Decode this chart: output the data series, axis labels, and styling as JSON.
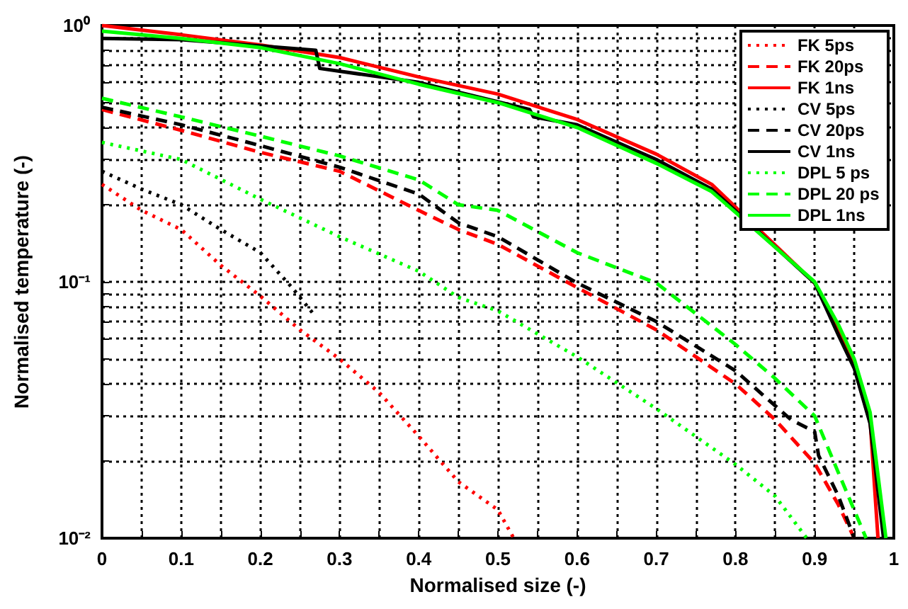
{
  "chart_data": {
    "type": "line",
    "xlabel": "Normalised size (-)",
    "ylabel": "Normalised temperature (-)",
    "log": "y",
    "grid": true,
    "legend": "top right",
    "marker": "none",
    "xlim": [
      0,
      1
    ],
    "ylim": [
      0.01,
      1
    ],
    "xticks": [
      0,
      {
        "value": 0.05,
        "label": null
      },
      0.1,
      {
        "value": 0.15,
        "label": null
      },
      0.2,
      {
        "value": 0.25,
        "label": null
      },
      0.3,
      {
        "value": 0.35,
        "label": null
      },
      0.4,
      {
        "value": 0.45,
        "label": null
      },
      0.5,
      {
        "value": 0.55,
        "label": null
      },
      0.6,
      {
        "value": 0.65,
        "label": null
      },
      0.7,
      {
        "value": 0.75,
        "label": null
      },
      0.8,
      {
        "value": 0.85,
        "label": null
      },
      0.9,
      {
        "value": 0.95,
        "label": null
      },
      1
    ],
    "yticks": [
      {
        "value": 0.01,
        "label": "10⁻²"
      },
      {
        "value": 0.02,
        "label": null
      },
      {
        "value": 0.03,
        "label": null
      },
      {
        "value": 0.04,
        "label": null
      },
      {
        "value": 0.05,
        "label": null
      },
      {
        "value": 0.06,
        "label": null
      },
      {
        "value": 0.07,
        "label": null
      },
      {
        "value": 0.08,
        "label": null
      },
      {
        "value": 0.09,
        "label": null
      },
      {
        "value": 0.1,
        "label": "10⁻¹"
      },
      {
        "value": 0.2,
        "label": null
      },
      {
        "value": 0.3,
        "label": null
      },
      {
        "value": 0.4,
        "label": null
      },
      {
        "value": 0.5,
        "label": null
      },
      {
        "value": 0.6,
        "label": null
      },
      {
        "value": 0.7,
        "label": null
      },
      {
        "value": 0.8,
        "label": null
      },
      {
        "value": 0.9,
        "label": null
      },
      {
        "value": 1,
        "label": "10⁰"
      }
    ],
    "series": [
      {
        "name": "FK 5ps",
        "color": "#ff0000",
        "line_style": "dotted",
        "x": [
          0,
          0.05,
          0.1,
          0.15,
          0.2,
          0.25,
          0.3,
          0.35,
          0.4,
          0.45,
          0.5,
          0.52
        ],
        "values": [
          0.24,
          0.19,
          0.16,
          0.116,
          0.088,
          0.065,
          0.05,
          0.037,
          0.025,
          0.0166,
          0.0129,
          0.01
        ]
      },
      {
        "name": "FK 20ps",
        "color": "#ff0000",
        "line_style": "dashed",
        "x": [
          0,
          0.1,
          0.2,
          0.3,
          0.4,
          0.45,
          0.5,
          0.6,
          0.7,
          0.8,
          0.85,
          0.9,
          0.93,
          0.95
        ],
        "values": [
          0.47,
          0.39,
          0.32,
          0.27,
          0.19,
          0.16,
          0.14,
          0.095,
          0.065,
          0.04,
          0.029,
          0.0196,
          0.0135,
          0.01
        ]
      },
      {
        "name": "FK 1ns",
        "color": "#ff0000",
        "line_style": "solid",
        "x": [
          0,
          0.1,
          0.2,
          0.3,
          0.4,
          0.5,
          0.6,
          0.7,
          0.77,
          0.9,
          0.93,
          0.95,
          0.97,
          0.98
        ],
        "values": [
          1.0,
          0.92,
          0.84,
          0.75,
          0.63,
          0.54,
          0.43,
          0.315,
          0.24,
          0.099,
          0.065,
          0.048,
          0.029,
          0.01
        ]
      },
      {
        "name": "CV 5ps",
        "color": "#000000",
        "line_style": "dotted",
        "x": [
          0,
          0.05,
          0.1,
          0.15,
          0.2,
          0.24,
          0.27
        ],
        "values": [
          0.27,
          0.23,
          0.2,
          0.16,
          0.13,
          0.095,
          0.073
        ]
      },
      {
        "name": "CV 20ps",
        "color": "#000000",
        "line_style": "dashed",
        "x": [
          0,
          0.1,
          0.2,
          0.3,
          0.4,
          0.45,
          0.5,
          0.6,
          0.7,
          0.8,
          0.87,
          0.9,
          0.905,
          0.93,
          0.95
        ],
        "values": [
          0.48,
          0.41,
          0.34,
          0.28,
          0.22,
          0.17,
          0.15,
          0.099,
          0.07,
          0.045,
          0.029,
          0.026,
          0.021,
          0.0146,
          0.01
        ]
      },
      {
        "name": "CV 1ns",
        "color": "#000000",
        "line_style": "solid",
        "x": [
          0,
          0.1,
          0.27,
          0.275,
          0.4,
          0.54,
          0.545,
          0.6,
          0.7,
          0.77,
          0.9,
          0.93,
          0.95,
          0.97,
          0.987
        ],
        "values": [
          0.89,
          0.88,
          0.8,
          0.68,
          0.6,
          0.47,
          0.44,
          0.41,
          0.3,
          0.23,
          0.099,
          0.062,
          0.046,
          0.028,
          0.01
        ]
      },
      {
        "name": "DPL 5 ps",
        "color": "#00ff00",
        "line_style": "dotted",
        "x": [
          0,
          0.1,
          0.2,
          0.3,
          0.4,
          0.45,
          0.5,
          0.6,
          0.7,
          0.8,
          0.85,
          0.89
        ],
        "values": [
          0.35,
          0.3,
          0.21,
          0.15,
          0.11,
          0.087,
          0.077,
          0.051,
          0.032,
          0.0194,
          0.0146,
          0.01
        ]
      },
      {
        "name": "DPL 20 ps",
        "color": "#00ff00",
        "line_style": "dashed",
        "x": [
          0,
          0.1,
          0.2,
          0.3,
          0.4,
          0.45,
          0.5,
          0.6,
          0.7,
          0.8,
          0.85,
          0.9,
          0.93,
          0.965
        ],
        "values": [
          0.52,
          0.44,
          0.37,
          0.31,
          0.25,
          0.2,
          0.19,
          0.13,
          0.099,
          0.057,
          0.042,
          0.03,
          0.018,
          0.01
        ]
      },
      {
        "name": "DPL 1ns",
        "color": "#00ff00",
        "line_style": "solid",
        "x": [
          0,
          0.1,
          0.2,
          0.3,
          0.4,
          0.5,
          0.6,
          0.7,
          0.77,
          0.9,
          0.93,
          0.95,
          0.97,
          0.99
        ],
        "values": [
          0.95,
          0.89,
          0.82,
          0.71,
          0.59,
          0.5,
          0.4,
          0.29,
          0.225,
          0.1,
          0.068,
          0.05,
          0.031,
          0.01
        ]
      }
    ]
  }
}
